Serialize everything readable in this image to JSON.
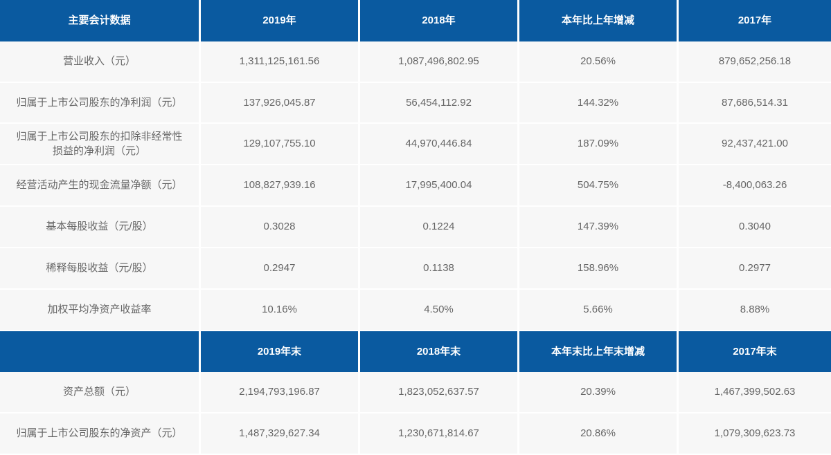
{
  "colors": {
    "header_bg": "#0a5aa0",
    "header_text": "#ffffff",
    "body_bg": "#f7f7f7",
    "cell_text": "#666666"
  },
  "sections": [
    {
      "headers": [
        "主要会计数据",
        "2019年",
        "2018年",
        "本年比上年增减",
        "2017年"
      ],
      "rows": [
        [
          "营业收入（元）",
          "1,311,125,161.56",
          "1,087,496,802.95",
          "20.56%",
          "879,652,256.18"
        ],
        [
          "归属于上市公司股东的净利润（元）",
          "137,926,045.87",
          "56,454,112.92",
          "144.32%",
          "87,686,514.31"
        ],
        [
          "归属于上市公司股东的扣除非经常性损益的净利润（元）",
          "129,107,755.10",
          "44,970,446.84",
          "187.09%",
          "92,437,421.00"
        ],
        [
          "经营活动产生的现金流量净额（元）",
          "108,827,939.16",
          "17,995,400.04",
          "504.75%",
          "-8,400,063.26"
        ],
        [
          "基本每股收益（元/股）",
          "0.3028",
          "0.1224",
          "147.39%",
          "0.3040"
        ],
        [
          "稀释每股收益（元/股）",
          "0.2947",
          "0.1138",
          "158.96%",
          "0.2977"
        ],
        [
          "加权平均净资产收益率",
          "10.16%",
          "4.50%",
          "5.66%",
          "8.88%"
        ]
      ]
    },
    {
      "headers": [
        "",
        "2019年末",
        "2018年末",
        "本年末比上年末增减",
        "2017年末"
      ],
      "rows": [
        [
          "资产总额（元）",
          "2,194,793,196.87",
          "1,823,052,637.57",
          "20.39%",
          "1,467,399,502.63"
        ],
        [
          "归属于上市公司股东的净资产（元）",
          "1,487,329,627.34",
          "1,230,671,814.67",
          "20.86%",
          "1,079,309,623.73"
        ]
      ]
    }
  ]
}
